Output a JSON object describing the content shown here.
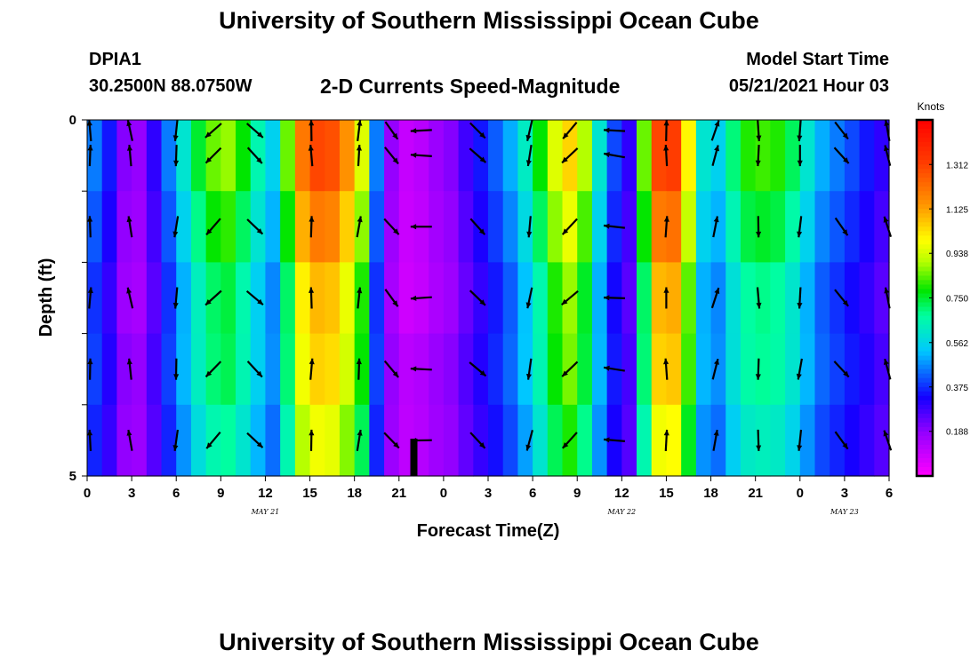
{
  "header": {
    "title_top": "University of Southern Mississippi Ocean Cube",
    "station_id": "DPIA1",
    "station_coords": "30.2500N  88.0750W",
    "plot_subtitle": "2-D Currents Speed-Magnitude",
    "model_start_label": "Model Start Time",
    "model_start_value": "05/21/2021 Hour 03",
    "title_bottom": "University of Southern Mississippi Ocean Cube"
  },
  "chart_data": {
    "type": "heatmap",
    "xlabel": "Forecast Time(Z)",
    "ylabel": "Depth (ft)",
    "x_range_hours": [
      0,
      54
    ],
    "y_range": [
      0,
      5
    ],
    "x_tick_labels": [
      "0",
      "3",
      "6",
      "9",
      "12",
      "15",
      "18",
      "21",
      "0",
      "3",
      "6",
      "9",
      "12",
      "15",
      "18",
      "21",
      "0",
      "3",
      "6"
    ],
    "y_tick_labels": [
      "0",
      "5"
    ],
    "date_labels": [
      {
        "label": "MAY 21",
        "hour": 12
      },
      {
        "label": "MAY 22",
        "hour": 36
      },
      {
        "label": "MAY 23",
        "hour": 51
      }
    ],
    "colorbar": {
      "unit": "Knots",
      "range": [
        0.0,
        1.5
      ],
      "tick_labels": [
        "1.312",
        "1.125",
        "0.938",
        "0.750",
        "0.562",
        "0.375",
        "0.188"
      ],
      "tick_values": [
        1.312,
        1.125,
        0.938,
        0.75,
        0.562,
        0.375,
        0.188
      ]
    },
    "speed_profile_knots": {
      "hours": [
        0,
        1,
        2,
        3,
        4,
        5,
        6,
        7,
        8,
        9,
        10,
        11,
        12,
        13,
        14,
        15,
        16,
        17,
        18,
        19,
        20,
        21,
        22,
        23,
        24,
        25,
        26,
        27,
        28,
        29,
        30,
        31,
        32,
        33,
        34,
        35,
        36,
        37,
        38,
        39,
        40,
        41,
        42,
        43,
        44,
        45,
        46,
        47,
        48,
        49,
        50,
        51,
        52,
        53,
        54
      ],
      "values": [
        0.45,
        0.35,
        0.2,
        0.18,
        0.3,
        0.45,
        0.6,
        0.75,
        0.85,
        0.88,
        0.78,
        0.65,
        0.55,
        0.85,
        1.2,
        1.3,
        1.28,
        1.15,
        0.95,
        0.45,
        0.18,
        0.1,
        0.12,
        0.17,
        0.2,
        0.28,
        0.35,
        0.42,
        0.5,
        0.62,
        0.78,
        0.95,
        1.05,
        0.9,
        0.6,
        0.4,
        0.3,
        0.85,
        1.3,
        1.32,
        1.0,
        0.6,
        0.55,
        0.7,
        0.8,
        0.82,
        0.8,
        0.72,
        0.6,
        0.5,
        0.45,
        0.4,
        0.35,
        0.3,
        0.32
      ]
    },
    "depth_scaling": [
      1.0,
      0.92,
      0.84,
      0.78,
      0.72
    ],
    "arrow_rows_depth": [
      0.0,
      0.5,
      1.5,
      2.5,
      3.5,
      4.5
    ],
    "arrow_columns_hours": [
      0.2,
      2.9,
      6.0,
      8.5,
      11.3,
      15.1,
      18.3,
      20.5,
      22.5,
      26.3,
      29.8,
      32.5,
      35.5,
      39.0,
      42.3,
      45.2,
      48.0,
      50.8,
      53.9
    ],
    "arrow_direction_deg": [
      0,
      350,
      185,
      225,
      135,
      0,
      5,
      140,
      270,
      135,
      190,
      225,
      275,
      0,
      15,
      180,
      185,
      140,
      345
    ],
    "colors": {
      "background": "#ffffff",
      "arrow": "#000000"
    }
  }
}
